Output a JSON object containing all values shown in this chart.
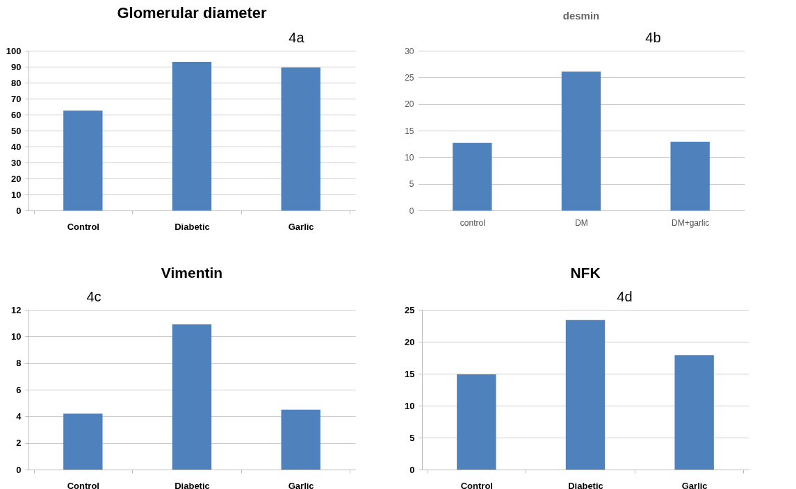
{
  "chart_data": [
    {
      "type": "bar",
      "title": "Glomerular diameter",
      "annotations": [
        "4a"
      ],
      "categories": [
        "Control",
        "Diabetic",
        "Garlic"
      ],
      "values": [
        62.5,
        93,
        89.5
      ],
      "color": "#4f81bd",
      "ylim": [
        0,
        100
      ],
      "yticks": [
        0,
        10,
        20,
        30,
        40,
        50,
        60,
        70,
        80,
        90,
        100
      ],
      "grid": "y"
    },
    {
      "type": "bar",
      "title": "desmin",
      "annotations": [
        "4b"
      ],
      "categories": [
        "control",
        "DM",
        "DM+garlic"
      ],
      "values": [
        12.7,
        26.1,
        12.9
      ],
      "color": "#4f81bd",
      "ylim": [
        0,
        30
      ],
      "yticks": [
        0,
        5,
        10,
        15,
        20,
        25,
        30
      ],
      "grid": "y"
    },
    {
      "type": "bar",
      "title": "Vimentin",
      "annotations": [
        "4c"
      ],
      "categories": [
        "Control",
        "Diabetic",
        "Garlic"
      ],
      "values": [
        4.2,
        10.9,
        4.5
      ],
      "color": "#4f81bd",
      "ylim": [
        0,
        12
      ],
      "yticks": [
        0,
        2,
        4,
        6,
        8,
        10,
        12
      ],
      "grid": "y"
    },
    {
      "type": "bar",
      "title": "NFK",
      "annotations": [
        "4d"
      ],
      "categories": [
        "Control",
        "Diabetic",
        "Garlic"
      ],
      "values": [
        14.9,
        23.4,
        17.9
      ],
      "color": "#4f81bd",
      "ylim": [
        0,
        25
      ],
      "yticks": [
        0,
        5,
        10,
        15,
        20,
        25
      ],
      "grid": "y"
    }
  ]
}
